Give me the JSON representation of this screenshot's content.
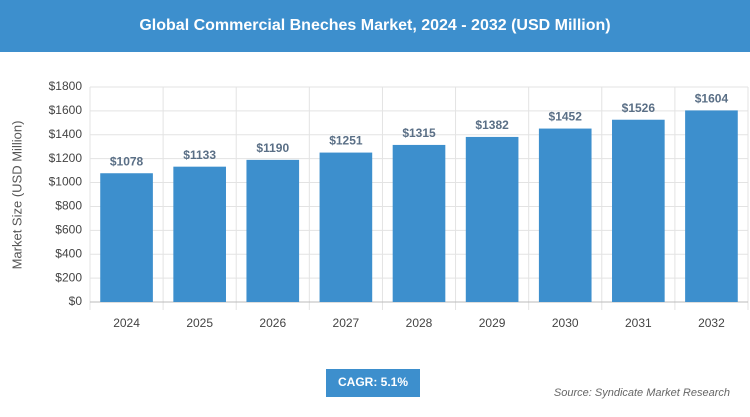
{
  "chart_data": {
    "type": "bar",
    "title": "Global Commercial Bneches Market, 2024 - 2032 (USD Million)",
    "y_label": "Market Size (USD Million)",
    "categories": [
      "2024",
      "2025",
      "2026",
      "2027",
      "2028",
      "2029",
      "2030",
      "2031",
      "2032"
    ],
    "values": [
      1078,
      1133,
      1190,
      1251,
      1315,
      1382,
      1452,
      1526,
      1604
    ],
    "value_labels": [
      "$1078",
      "$1133",
      "$1190",
      "$1251",
      "$1315",
      "$1382",
      "$1452",
      "$1526",
      "$1604"
    ],
    "color": "#3d8fcd",
    "ylim": [
      0,
      1800
    ],
    "yticks": [
      {
        "value": 0,
        "label": "$0"
      },
      {
        "value": 200,
        "label": "$200"
      },
      {
        "value": 400,
        "label": "$400"
      },
      {
        "value": 600,
        "label": "$600"
      },
      {
        "value": 800,
        "label": "$800"
      },
      {
        "value": 1000,
        "label": "$1000"
      },
      {
        "value": 1200,
        "label": "$1200"
      },
      {
        "value": 1400,
        "label": "$1400"
      },
      {
        "value": 1600,
        "label": "$1600"
      },
      {
        "value": 1800,
        "label": "$1800"
      }
    ],
    "grid": true,
    "cagr": "CAGR: 5.1%",
    "source": "Source: Syndicate Market Research"
  }
}
